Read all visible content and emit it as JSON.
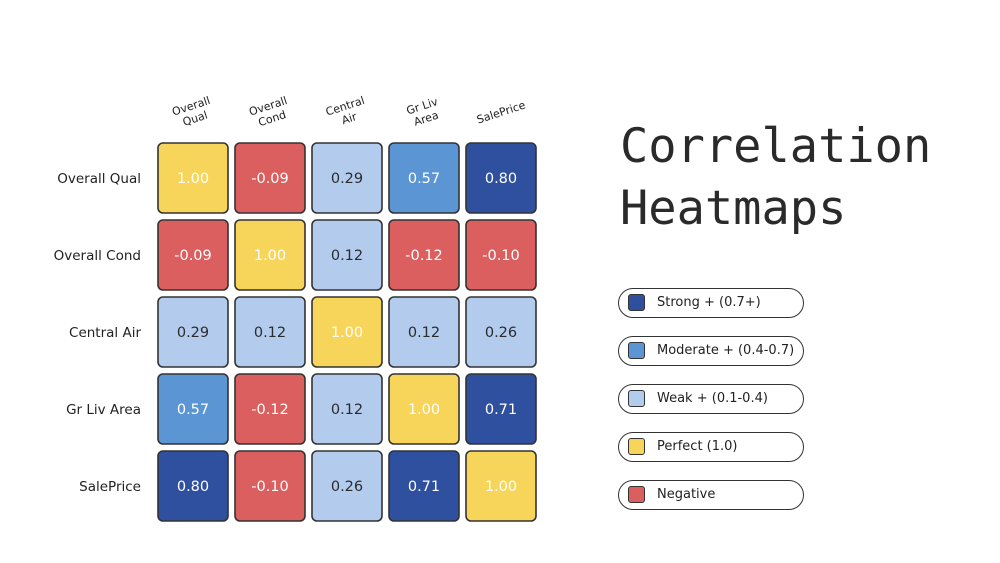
{
  "title_lines": [
    "Correlation",
    "Heatmaps"
  ],
  "chart_data": {
    "type": "heatmap",
    "row_labels": [
      "Overall Qual",
      "Overall Cond",
      "Central Air",
      "Gr Liv Area",
      "SalePrice"
    ],
    "col_labels": [
      [
        "Overall",
        "Qual"
      ],
      [
        "Overall",
        "Cond"
      ],
      [
        "Central",
        "Air"
      ],
      [
        "Gr Liv",
        "Area"
      ],
      [
        "SalePrice"
      ]
    ],
    "values": [
      [
        1.0,
        -0.09,
        0.29,
        0.57,
        0.8
      ],
      [
        -0.09,
        1.0,
        0.12,
        -0.12,
        -0.1
      ],
      [
        0.29,
        0.12,
        1.0,
        0.12,
        0.26
      ],
      [
        0.57,
        -0.12,
        0.12,
        1.0,
        0.71
      ],
      [
        0.8,
        -0.1,
        0.26,
        0.71,
        1.0
      ]
    ],
    "value_labels": [
      [
        "1.00",
        "-0.09",
        "0.29",
        "0.57",
        "0.80"
      ],
      [
        "-0.09",
        "1.00",
        "0.12",
        "-0.12",
        "-0.10"
      ],
      [
        "0.29",
        "0.12",
        "1.00",
        "0.12",
        "0.26"
      ],
      [
        "0.57",
        "-0.12",
        "0.12",
        "1.00",
        "0.71"
      ],
      [
        "0.80",
        "-0.10",
        "0.26",
        "0.71",
        "1.00"
      ]
    ],
    "legend_placement": "right",
    "legend": [
      {
        "label": "Strong + (0.7+)",
        "color": "#2f4f9f"
      },
      {
        "label": "Moderate + (0.4-0.7)",
        "color": "#5b95d3"
      },
      {
        "label": "Weak + (0.1-0.4)",
        "color": "#b3ccee"
      },
      {
        "label": "Perfect (1.0)",
        "color": "#f7d55a"
      },
      {
        "label": "Negative",
        "color": "#db5f5f"
      }
    ]
  }
}
